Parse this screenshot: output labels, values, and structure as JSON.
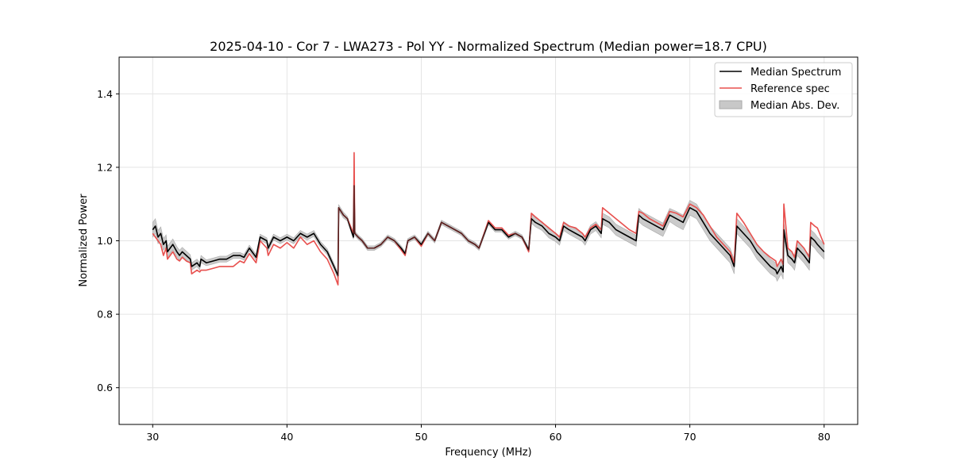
{
  "chart_data": {
    "type": "line",
    "title": "2025-04-10 - Cor 7 - LWA273 - Pol YY - Normalized Spectrum (Median power=18.7 CPU)",
    "xlabel": "Frequency (MHz)",
    "ylabel": "Normalized Power",
    "xlim": [
      27.5,
      82.5
    ],
    "ylim": [
      0.5,
      1.5
    ],
    "xticks": [
      30,
      40,
      50,
      60,
      70,
      80
    ],
    "xtick_labels": [
      "30",
      "40",
      "50",
      "60",
      "70",
      "80"
    ],
    "yticks": [
      0.6,
      0.8,
      1.0,
      1.2,
      1.4
    ],
    "ytick_labels": [
      "0.6",
      "0.8",
      "1.0",
      "1.2",
      "1.4"
    ],
    "grid": true,
    "legend_position": "top-right",
    "legend": [
      "Median Spectrum",
      "Reference spec",
      "Median Abs. Dev."
    ],
    "series": [
      {
        "name": "Median Spectrum",
        "color": "#000000",
        "x": [
          30.0,
          30.2,
          30.4,
          30.6,
          30.8,
          31.0,
          31.1,
          31.3,
          31.5,
          31.8,
          32.0,
          32.2,
          32.5,
          32.8,
          32.9,
          33.3,
          33.5,
          33.6,
          34.0,
          34.5,
          35.0,
          35.5,
          36.0,
          36.5,
          36.8,
          37.2,
          37.6,
          37.7,
          38.0,
          38.5,
          38.6,
          39.0,
          39.5,
          40.0,
          40.5,
          41.0,
          41.5,
          42.0,
          42.5,
          43.0,
          43.5,
          43.8,
          43.85,
          44.2,
          44.5,
          44.95,
          45.0,
          45.05,
          45.3,
          45.6,
          46.0,
          46.5,
          47.0,
          47.5,
          48.0,
          48.5,
          48.8,
          49.0,
          49.5,
          50.0,
          50.5,
          51.0,
          51.5,
          52.0,
          52.5,
          53.0,
          53.5,
          54.0,
          54.3,
          54.5,
          55.0,
          55.5,
          56.0,
          56.5,
          57.0,
          57.5,
          58.0,
          58.2,
          58.5,
          59.0,
          59.5,
          60.0,
          60.3,
          60.6,
          61.0,
          61.5,
          62.0,
          62.2,
          62.6,
          63.0,
          63.4,
          63.5,
          64.0,
          64.5,
          65.0,
          65.5,
          66.0,
          66.2,
          66.5,
          67.0,
          67.5,
          68.0,
          68.5,
          69.0,
          69.5,
          70.0,
          70.5,
          71.0,
          71.5,
          72.0,
          72.5,
          73.0,
          73.3,
          73.5,
          74.0,
          74.5,
          75.0,
          75.5,
          76.0,
          76.4,
          76.5,
          76.8,
          76.9,
          76.95,
          77.0,
          77.3,
          77.6,
          77.8,
          78.0,
          78.5,
          78.9,
          79.0,
          79.3,
          79.5,
          80.0
        ],
        "y": [
          1.03,
          1.04,
          1.01,
          1.02,
          0.99,
          1.0,
          0.97,
          0.98,
          0.99,
          0.97,
          0.96,
          0.97,
          0.96,
          0.95,
          0.93,
          0.94,
          0.93,
          0.95,
          0.94,
          0.945,
          0.95,
          0.95,
          0.96,
          0.96,
          0.955,
          0.98,
          0.96,
          0.955,
          1.01,
          1.0,
          0.98,
          1.01,
          1.0,
          1.01,
          1.0,
          1.02,
          1.01,
          1.02,
          0.99,
          0.97,
          0.93,
          0.905,
          1.09,
          1.07,
          1.06,
          1.01,
          1.15,
          1.02,
          1.01,
          1.0,
          0.98,
          0.98,
          0.99,
          1.01,
          1.0,
          0.98,
          0.965,
          1.0,
          1.01,
          0.99,
          1.02,
          1.0,
          1.05,
          1.04,
          1.03,
          1.02,
          1.0,
          0.99,
          0.98,
          1.0,
          1.05,
          1.03,
          1.03,
          1.01,
          1.02,
          1.01,
          0.975,
          1.06,
          1.05,
          1.04,
          1.02,
          1.01,
          1.0,
          1.04,
          1.03,
          1.02,
          1.01,
          1.0,
          1.03,
          1.04,
          1.02,
          1.06,
          1.05,
          1.03,
          1.02,
          1.01,
          1.0,
          1.07,
          1.06,
          1.05,
          1.04,
          1.03,
          1.07,
          1.06,
          1.05,
          1.09,
          1.08,
          1.05,
          1.02,
          1.0,
          0.98,
          0.96,
          0.93,
          1.04,
          1.02,
          1.0,
          0.97,
          0.95,
          0.93,
          0.92,
          0.91,
          0.93,
          0.92,
          0.915,
          1.03,
          0.96,
          0.95,
          0.94,
          0.98,
          0.96,
          0.94,
          1.01,
          1.0,
          0.99,
          0.97
        ]
      },
      {
        "name": "Reference spec",
        "color": "#e8514f",
        "x": [
          30.0,
          30.2,
          30.4,
          30.6,
          30.8,
          31.0,
          31.1,
          31.3,
          31.5,
          31.8,
          32.0,
          32.2,
          32.5,
          32.8,
          32.9,
          33.3,
          33.5,
          33.6,
          34.0,
          34.5,
          35.0,
          35.5,
          36.0,
          36.5,
          36.8,
          37.2,
          37.6,
          37.7,
          38.0,
          38.5,
          38.6,
          39.0,
          39.5,
          40.0,
          40.5,
          41.0,
          41.5,
          42.0,
          42.5,
          43.0,
          43.5,
          43.8,
          43.85,
          44.2,
          44.5,
          44.95,
          45.0,
          45.05,
          45.3,
          45.6,
          46.0,
          46.5,
          47.0,
          47.5,
          48.0,
          48.5,
          48.8,
          49.0,
          49.5,
          50.0,
          50.5,
          51.0,
          51.5,
          52.0,
          52.5,
          53.0,
          53.5,
          54.0,
          54.3,
          54.5,
          55.0,
          55.5,
          56.0,
          56.5,
          57.0,
          57.5,
          58.0,
          58.2,
          58.5,
          59.0,
          59.5,
          60.0,
          60.3,
          60.6,
          61.0,
          61.5,
          62.0,
          62.2,
          62.6,
          63.0,
          63.4,
          63.5,
          64.0,
          64.5,
          65.0,
          65.5,
          66.0,
          66.2,
          66.5,
          67.0,
          67.5,
          68.0,
          68.5,
          69.0,
          69.5,
          70.0,
          70.5,
          71.0,
          71.5,
          72.0,
          72.5,
          73.0,
          73.3,
          73.5,
          74.0,
          74.5,
          75.0,
          75.5,
          76.0,
          76.4,
          76.5,
          76.8,
          76.9,
          76.95,
          77.0,
          77.3,
          77.6,
          77.8,
          78.0,
          78.5,
          78.9,
          79.0,
          79.3,
          79.5,
          80.0
        ],
        "y": [
          1.02,
          1.01,
          1.0,
          0.99,
          0.96,
          0.98,
          0.95,
          0.96,
          0.97,
          0.95,
          0.945,
          0.955,
          0.945,
          0.94,
          0.91,
          0.92,
          0.915,
          0.92,
          0.92,
          0.925,
          0.93,
          0.93,
          0.93,
          0.945,
          0.94,
          0.965,
          0.945,
          0.94,
          1.0,
          0.98,
          0.96,
          0.99,
          0.98,
          0.995,
          0.98,
          1.01,
          0.99,
          1.0,
          0.97,
          0.95,
          0.91,
          0.88,
          1.09,
          1.07,
          1.06,
          1.02,
          1.24,
          1.02,
          1.01,
          1.0,
          0.98,
          0.98,
          0.99,
          1.01,
          1.0,
          0.975,
          0.96,
          1.0,
          1.01,
          0.985,
          1.02,
          1.0,
          1.05,
          1.04,
          1.03,
          1.02,
          1.0,
          0.99,
          0.98,
          1.0,
          1.055,
          1.035,
          1.035,
          1.015,
          1.02,
          1.01,
          0.97,
          1.075,
          1.065,
          1.05,
          1.035,
          1.02,
          1.01,
          1.05,
          1.04,
          1.035,
          1.02,
          1.01,
          1.035,
          1.045,
          1.03,
          1.09,
          1.075,
          1.06,
          1.045,
          1.03,
          1.02,
          1.08,
          1.075,
          1.06,
          1.05,
          1.04,
          1.08,
          1.075,
          1.065,
          1.1,
          1.09,
          1.07,
          1.04,
          1.01,
          0.99,
          0.97,
          0.94,
          1.075,
          1.05,
          1.02,
          0.99,
          0.97,
          0.955,
          0.945,
          0.93,
          0.95,
          0.94,
          0.935,
          1.1,
          0.98,
          0.97,
          0.955,
          1.0,
          0.98,
          0.955,
          1.05,
          1.04,
          1.035,
          0.99
        ]
      }
    ],
    "band": {
      "name": "Median Abs. Dev.",
      "color": "#c8c8c8",
      "edge_color": "#aaaaaa",
      "half_width": [
        0.02,
        0.02,
        0.018,
        0.018,
        0.016,
        0.016,
        0.015,
        0.015,
        0.015,
        0.014,
        0.014,
        0.012,
        0.012,
        0.012,
        0.01,
        0.01,
        0.01,
        0.01,
        0.008,
        0.008,
        0.008,
        0.008,
        0.008,
        0.008,
        0.008,
        0.008,
        0.008,
        0.008,
        0.008,
        0.008,
        0.008,
        0.008,
        0.008,
        0.008,
        0.008,
        0.008,
        0.008,
        0.008,
        0.008,
        0.008,
        0.008,
        0.008,
        0.008,
        0.008,
        0.006,
        0.006,
        0.006,
        0.006,
        0.006,
        0.006,
        0.006,
        0.006,
        0.006,
        0.006,
        0.006,
        0.006,
        0.006,
        0.006,
        0.006,
        0.006,
        0.006,
        0.006,
        0.006,
        0.006,
        0.006,
        0.006,
        0.006,
        0.006,
        0.006,
        0.006,
        0.006,
        0.006,
        0.006,
        0.006,
        0.006,
        0.006,
        0.006,
        0.012,
        0.012,
        0.012,
        0.012,
        0.012,
        0.012,
        0.012,
        0.012,
        0.012,
        0.012,
        0.012,
        0.012,
        0.012,
        0.012,
        0.015,
        0.015,
        0.015,
        0.015,
        0.015,
        0.015,
        0.018,
        0.018,
        0.018,
        0.018,
        0.018,
        0.018,
        0.02,
        0.02,
        0.02,
        0.02,
        0.02,
        0.02,
        0.02,
        0.02,
        0.02,
        0.02,
        0.02,
        0.02,
        0.02,
        0.02,
        0.02,
        0.02,
        0.02,
        0.02,
        0.02,
        0.02,
        0.02,
        0.02,
        0.02,
        0.02,
        0.02,
        0.02,
        0.02,
        0.02,
        0.02,
        0.02,
        0.02,
        0.02
      ]
    }
  }
}
